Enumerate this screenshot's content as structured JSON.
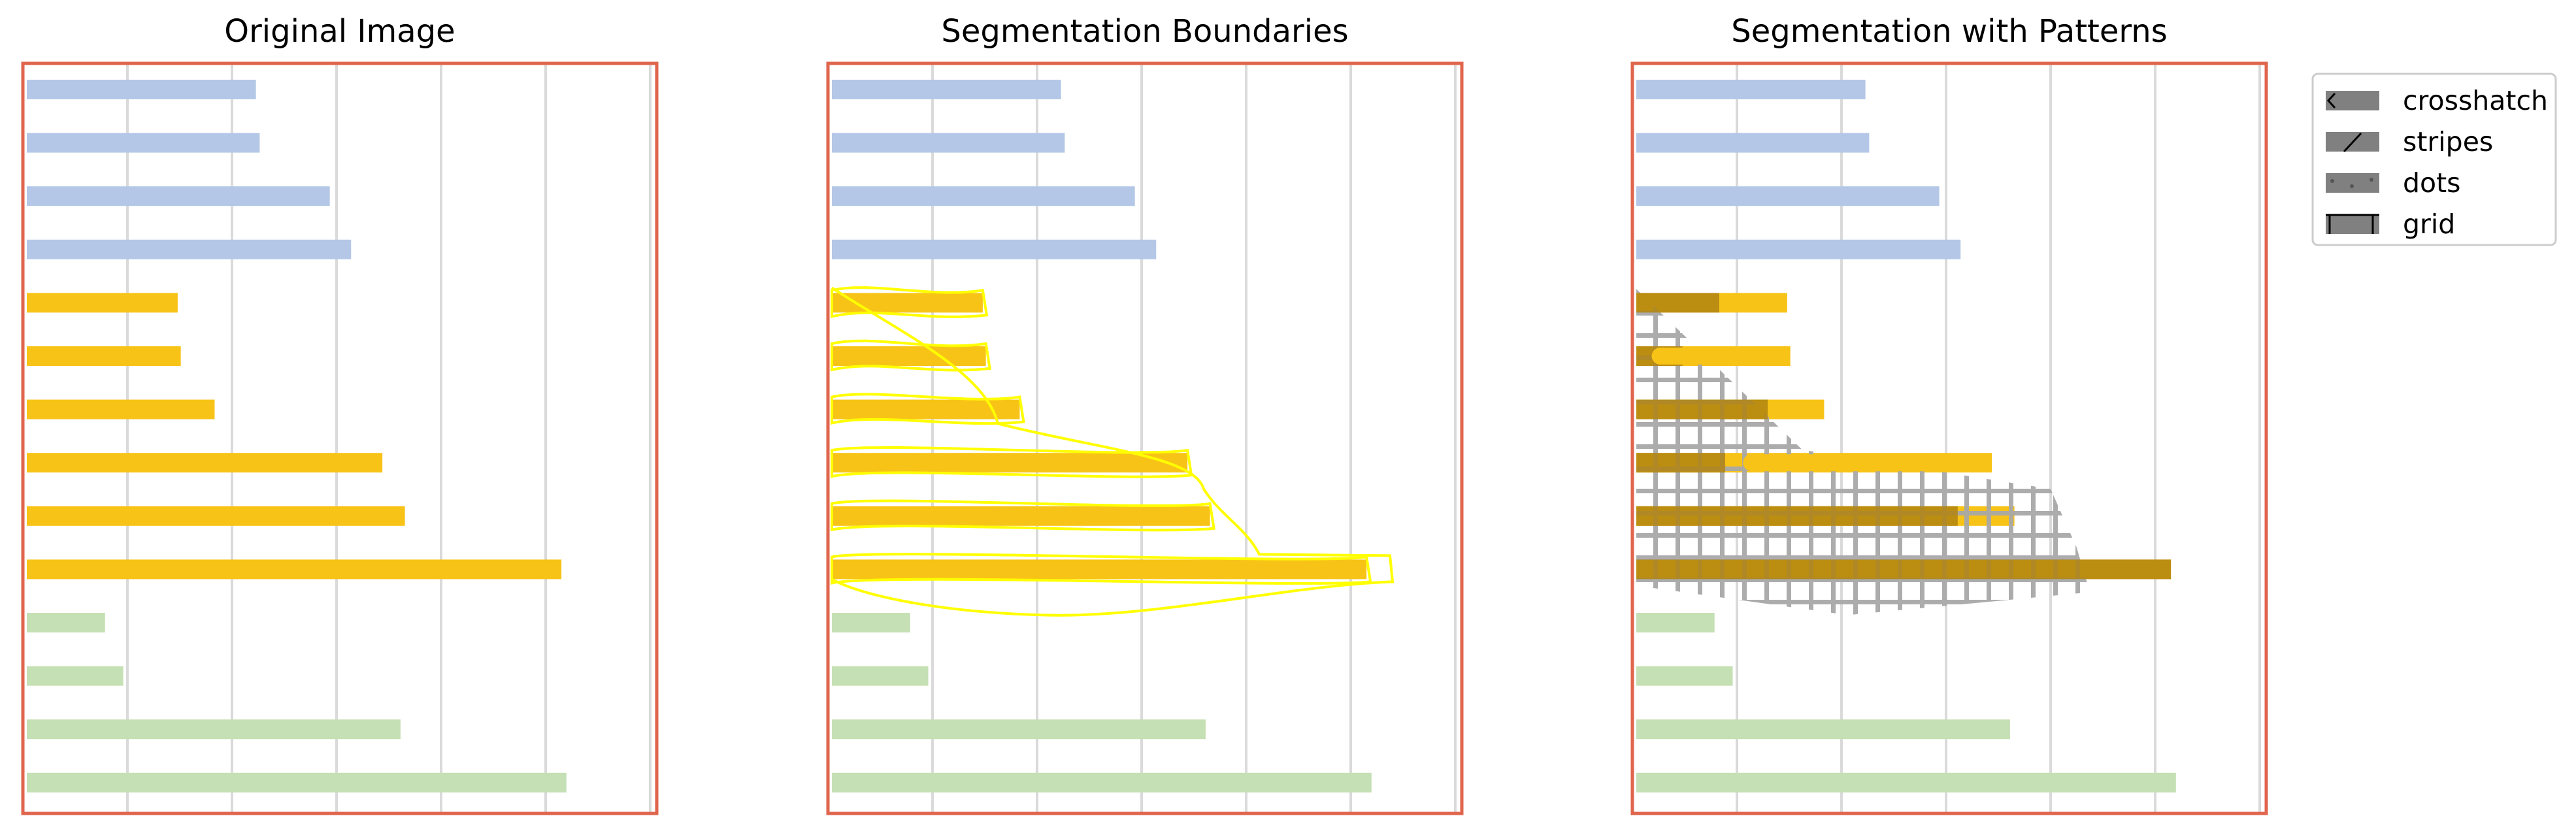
{
  "panels": [
    {
      "title": "Original Image",
      "mode": "plain"
    },
    {
      "title": "Segmentation Boundaries",
      "mode": "boundaries"
    },
    {
      "title": "Segmentation with Patterns",
      "mode": "patterns"
    }
  ],
  "colors": {
    "frame": "#e0654d",
    "gridline": "#dadada",
    "blue_bar": "#b4c7e7",
    "yellow_bar": "#f8c317",
    "green_bar": "#c5e0b4",
    "boundary": "#ffff00",
    "pattern_dark": "#b08410",
    "pattern_gray": "#a8a8a8",
    "legend_swatch": "#808080"
  },
  "bars": [
    {
      "group": "blue",
      "value": 0.366
    },
    {
      "group": "blue",
      "value": 0.372
    },
    {
      "group": "blue",
      "value": 0.484
    },
    {
      "group": "blue",
      "value": 0.518
    },
    {
      "group": "yellow",
      "value": 0.241
    },
    {
      "group": "yellow",
      "value": 0.246
    },
    {
      "group": "yellow",
      "value": 0.3
    },
    {
      "group": "yellow",
      "value": 0.568
    },
    {
      "group": "yellow",
      "value": 0.604
    },
    {
      "group": "yellow",
      "value": 0.854
    },
    {
      "group": "green",
      "value": 0.125
    },
    {
      "group": "green",
      "value": 0.154
    },
    {
      "group": "green",
      "value": 0.597
    },
    {
      "group": "green",
      "value": 0.862
    }
  ],
  "legend": {
    "items": [
      {
        "label": "crosshatch",
        "icon": "crosshatch-icon"
      },
      {
        "label": "stripes",
        "icon": "stripes-icon"
      },
      {
        "label": "dots",
        "icon": "dots-icon"
      },
      {
        "label": "grid",
        "icon": "grid-icon"
      }
    ]
  }
}
